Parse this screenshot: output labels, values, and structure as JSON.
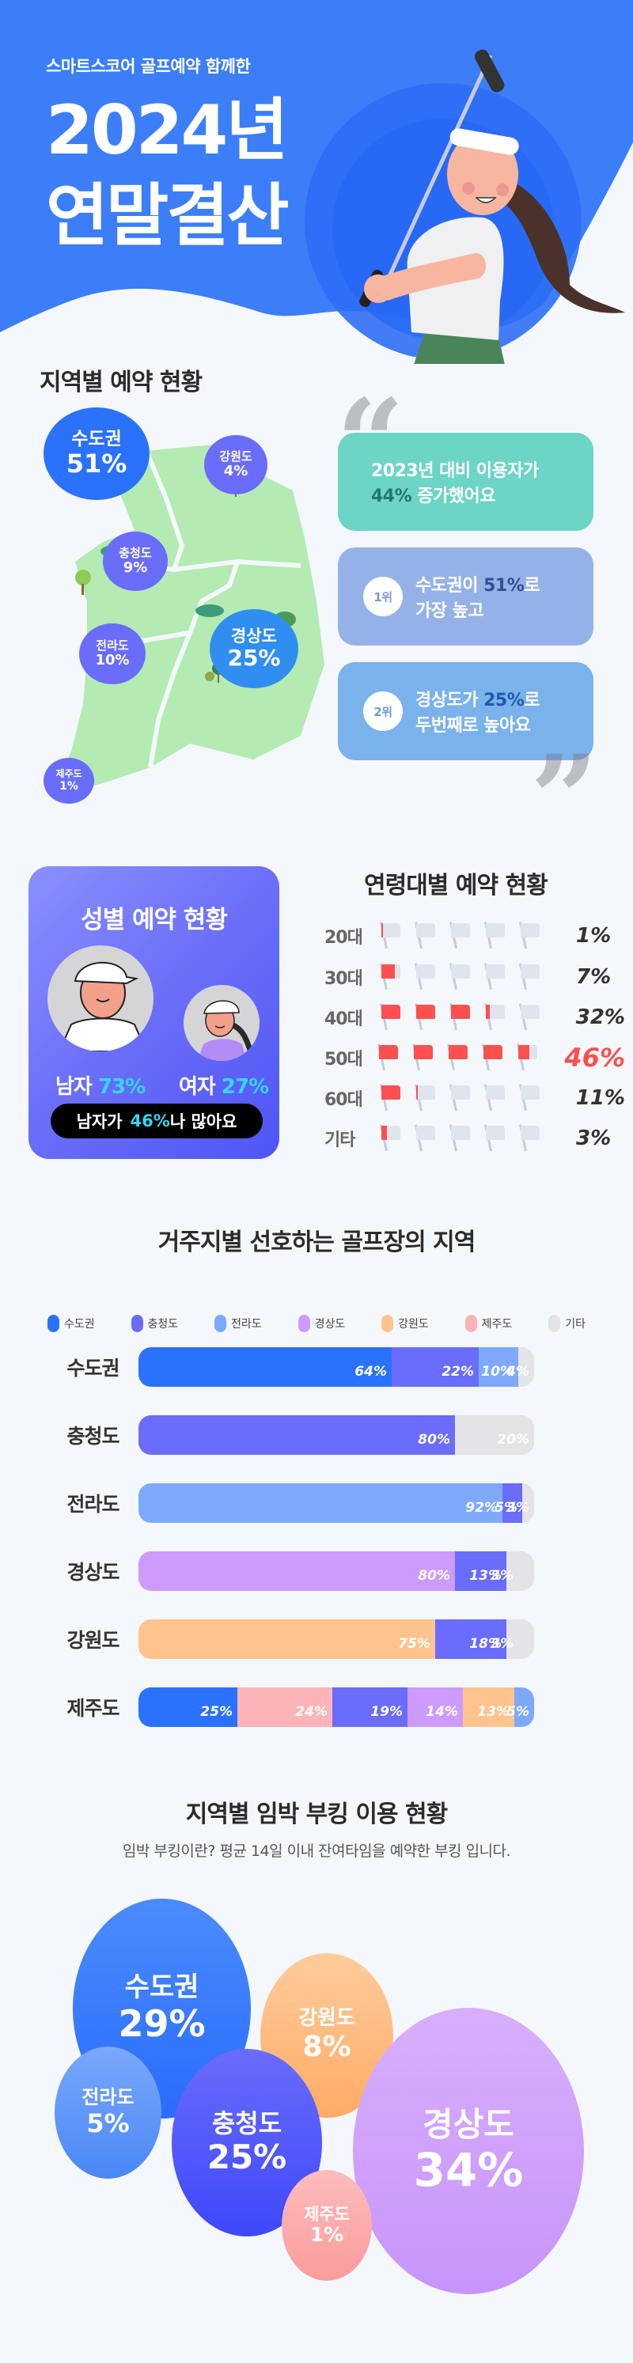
{
  "hero": {
    "subtitle": "스마트스코어 골프예약 함께한",
    "title_line1": "2024년",
    "title_line2": "연말결산",
    "bg_color": "#3b7ef8",
    "illustration": "golfer-woman-swinging-club"
  },
  "regional": {
    "title": "지역별 예약 현황",
    "regions": [
      {
        "name": "수도권",
        "pct": "51%"
      },
      {
        "name": "강원도",
        "pct": "4%"
      },
      {
        "name": "충청도",
        "pct": "9%"
      },
      {
        "name": "경상도",
        "pct": "25%"
      },
      {
        "name": "전라도",
        "pct": "10%"
      },
      {
        "name": "제주도",
        "pct": "1%"
      }
    ],
    "cards": [
      {
        "line1": "2023년 대비 이용자가",
        "highlight": "44%",
        "line2_rest": " 증가했어요"
      },
      {
        "rank": "1위",
        "prefix": "수도권이 ",
        "highlight": "51%",
        "suffix": "로",
        "line2": "가장 높고"
      },
      {
        "rank": "2위",
        "prefix": "경상도가 ",
        "highlight": "25%",
        "suffix": "로",
        "line2": "두번째로 높아요"
      }
    ],
    "quote_open": "“",
    "quote_close": "”"
  },
  "gender": {
    "title": "성별 예약 현황",
    "male_label": "남자",
    "male_pct": "73%",
    "female_label": "여자",
    "female_pct": "27%",
    "note_prefix": "남자가",
    "note_pct": "46%",
    "note_suffix": "나 많아요"
  },
  "age": {
    "title": "연령대별 예약 현황",
    "rows": [
      {
        "label": "20대",
        "pct": "1%",
        "value": 1
      },
      {
        "label": "30대",
        "pct": "7%",
        "value": 7
      },
      {
        "label": "40대",
        "pct": "32%",
        "value": 32
      },
      {
        "label": "50대",
        "pct": "46%",
        "value": 46
      },
      {
        "label": "60대",
        "pct": "11%",
        "value": 11
      },
      {
        "label": "기타",
        "pct": "3%",
        "value": 3
      }
    ]
  },
  "preference": {
    "title": "거주지별 선호하는 골프장의 지역",
    "legend": [
      {
        "label": "수도권",
        "color": "#2a72fb"
      },
      {
        "label": "충청도",
        "color": "#6a6cfb"
      },
      {
        "label": "전라도",
        "color": "#7ea9fb"
      },
      {
        "label": "경상도",
        "color": "#cd9bfb"
      },
      {
        "label": "강원도",
        "color": "#ffc38e"
      },
      {
        "label": "제주도",
        "color": "#fdb4b8"
      },
      {
        "label": "기타",
        "color": "#e3e3e8"
      }
    ],
    "rows": [
      {
        "label": "수도권",
        "segments": [
          {
            "region": "수도권",
            "value": 64,
            "text": "64%"
          },
          {
            "region": "충청도",
            "value": 22,
            "text": "22%"
          },
          {
            "region": "전라도",
            "value": 10,
            "text": "10%"
          },
          {
            "region": "기타",
            "value": 4,
            "text": "4%"
          }
        ]
      },
      {
        "label": "충청도",
        "segments": [
          {
            "region": "충청도",
            "value": 80,
            "text": "80%"
          },
          {
            "region": "기타",
            "value": 20,
            "text": "20%"
          }
        ]
      },
      {
        "label": "전라도",
        "segments": [
          {
            "region": "전라도",
            "value": 92,
            "text": "92%"
          },
          {
            "region": "충청도",
            "value": 5,
            "text": "5%"
          },
          {
            "region": "기타",
            "value": 3,
            "text": "3%"
          }
        ]
      },
      {
        "label": "경상도",
        "segments": [
          {
            "region": "경상도",
            "value": 80,
            "text": "80%"
          },
          {
            "region": "충청도",
            "value": 13,
            "text": "13%"
          },
          {
            "region": "기타",
            "value": 3,
            "text": "3%"
          }
        ]
      },
      {
        "label": "강원도",
        "segments": [
          {
            "region": "강원도",
            "value": 75,
            "text": "75%"
          },
          {
            "region": "충청도",
            "value": 18,
            "text": "18%"
          },
          {
            "region": "기타",
            "value": 3,
            "text": "3%"
          }
        ]
      },
      {
        "label": "제주도",
        "segments": [
          {
            "region": "수도권",
            "value": 25,
            "text": "25%"
          },
          {
            "region": "제주도",
            "value": 24,
            "text": "24%"
          },
          {
            "region": "충청도",
            "value": 19,
            "text": "19%"
          },
          {
            "region": "경상도",
            "value": 14,
            "text": "14%"
          },
          {
            "region": "강원도",
            "value": 13,
            "text": "13%"
          },
          {
            "region": "전라도",
            "value": 5,
            "text": "5%"
          }
        ]
      }
    ]
  },
  "booking": {
    "title": "지역별 임박 부킹 이용 현황",
    "subtitle": "임박 부킹이란? 평균 14일 이내 잔여타임을 예약한 부킹 입니다.",
    "bubbles": [
      {
        "name": "수도권",
        "pct": "29%"
      },
      {
        "name": "강원도",
        "pct": "8%"
      },
      {
        "name": "전라도",
        "pct": "5%"
      },
      {
        "name": "충청도",
        "pct": "25%"
      },
      {
        "name": "경상도",
        "pct": "34%"
      },
      {
        "name": "제주도",
        "pct": "1%"
      }
    ]
  },
  "chart_data": [
    {
      "type": "bar",
      "title": "지역별 예약 현황",
      "categories": [
        "수도권",
        "경상도",
        "전라도",
        "충청도",
        "강원도",
        "제주도"
      ],
      "values": [
        51,
        25,
        10,
        9,
        4,
        1
      ],
      "ylabel": "%"
    },
    {
      "type": "pie",
      "title": "성별 예약 현황",
      "categories": [
        "남자",
        "여자"
      ],
      "values": [
        73,
        27
      ]
    },
    {
      "type": "bar",
      "title": "연령대별 예약 현황",
      "categories": [
        "20대",
        "30대",
        "40대",
        "50대",
        "60대",
        "기타"
      ],
      "values": [
        1,
        7,
        32,
        46,
        11,
        3
      ],
      "ylabel": "%"
    },
    {
      "type": "bar",
      "title": "거주지별 선호하는 골프장의 지역",
      "stacked": true,
      "orientation": "horizontal",
      "categories": [
        "수도권",
        "충청도",
        "전라도",
        "경상도",
        "강원도",
        "제주도"
      ],
      "series": [
        {
          "name": "수도권",
          "values": [
            64,
            0,
            0,
            0,
            0,
            25
          ]
        },
        {
          "name": "충청도",
          "values": [
            22,
            80,
            5,
            13,
            18,
            19
          ]
        },
        {
          "name": "전라도",
          "values": [
            10,
            0,
            92,
            0,
            0,
            5
          ]
        },
        {
          "name": "경상도",
          "values": [
            0,
            0,
            0,
            80,
            0,
            14
          ]
        },
        {
          "name": "강원도",
          "values": [
            0,
            0,
            0,
            0,
            75,
            13
          ]
        },
        {
          "name": "제주도",
          "values": [
            0,
            0,
            0,
            0,
            0,
            24
          ]
        },
        {
          "name": "기타",
          "values": [
            4,
            20,
            3,
            3,
            3,
            0
          ]
        }
      ],
      "legend_position": "top"
    },
    {
      "type": "scatter",
      "title": "지역별 임박 부킹 이용 현황",
      "categories": [
        "수도권",
        "강원도",
        "전라도",
        "충청도",
        "경상도",
        "제주도"
      ],
      "values": [
        29,
        8,
        5,
        25,
        34,
        1
      ],
      "ylabel": "%"
    }
  ]
}
